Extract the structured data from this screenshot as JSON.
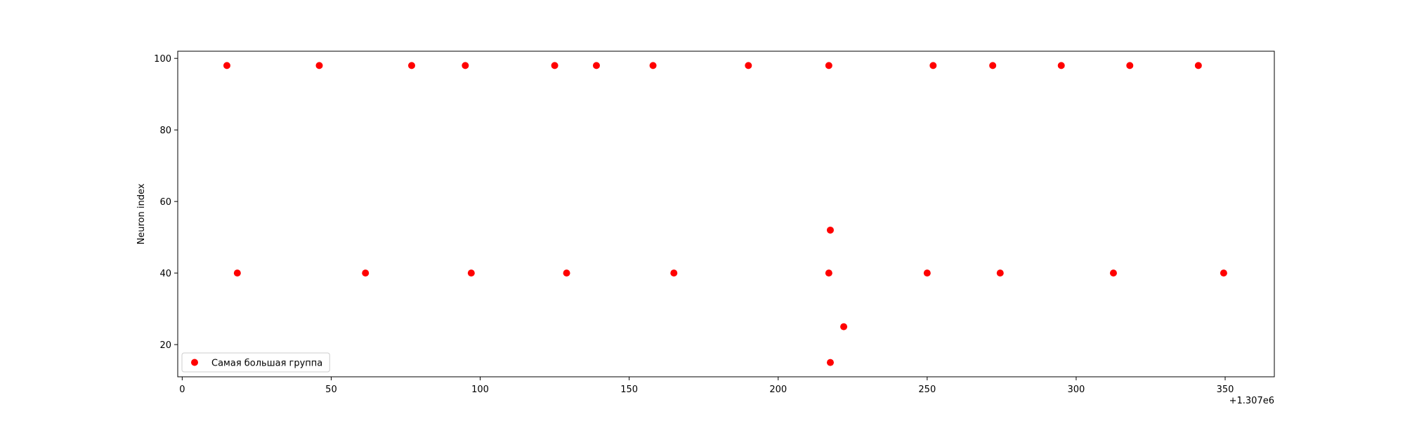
{
  "chart_data": {
    "type": "scatter",
    "title": "",
    "xlabel": "",
    "ylabel": "Neuron index",
    "x_offset_label": "+1.307e6",
    "xlim": [
      -1.5,
      366.5
    ],
    "ylim": [
      11,
      102
    ],
    "x_ticks": [
      0,
      50,
      100,
      150,
      200,
      250,
      300,
      350
    ],
    "y_ticks": [
      20,
      40,
      60,
      80,
      100
    ],
    "grid": false,
    "legend_position": "lower-left",
    "series": [
      {
        "name": "Самая большая группа",
        "color": "#ff0000",
        "points": [
          {
            "x": 15,
            "y": 98
          },
          {
            "x": 46,
            "y": 98
          },
          {
            "x": 77,
            "y": 98
          },
          {
            "x": 95,
            "y": 98
          },
          {
            "x": 125,
            "y": 98
          },
          {
            "x": 139,
            "y": 98
          },
          {
            "x": 158,
            "y": 98
          },
          {
            "x": 190,
            "y": 98
          },
          {
            "x": 217,
            "y": 98
          },
          {
            "x": 252,
            "y": 98
          },
          {
            "x": 272,
            "y": 98
          },
          {
            "x": 295,
            "y": 98
          },
          {
            "x": 318,
            "y": 98
          },
          {
            "x": 341,
            "y": 98
          },
          {
            "x": 18.5,
            "y": 40
          },
          {
            "x": 61.5,
            "y": 40
          },
          {
            "x": 97,
            "y": 40
          },
          {
            "x": 129,
            "y": 40
          },
          {
            "x": 165,
            "y": 40
          },
          {
            "x": 217,
            "y": 40
          },
          {
            "x": 250,
            "y": 40
          },
          {
            "x": 274.5,
            "y": 40
          },
          {
            "x": 312.5,
            "y": 40
          },
          {
            "x": 349.5,
            "y": 40
          },
          {
            "x": 217.5,
            "y": 52
          },
          {
            "x": 222,
            "y": 25
          },
          {
            "x": 217.5,
            "y": 15
          }
        ]
      }
    ]
  }
}
